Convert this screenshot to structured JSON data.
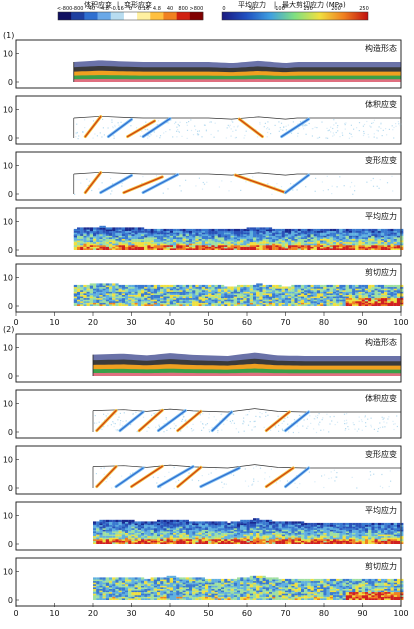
{
  "colorbars": {
    "left": {
      "title_a": "体积应变",
      "title_b": "变形应变",
      "ticks": [
        "<-800",
        "-800",
        "-40",
        "-4.8",
        "-0.16",
        "0",
        "0.16",
        "4.8",
        "40",
        "800",
        ">800"
      ],
      "colors": [
        "#101060",
        "#1e3fa0",
        "#2f6fd0",
        "#6aa8e8",
        "#b8dcf0",
        "#ffffff",
        "#fff0a0",
        "#ffc040",
        "#f08020",
        "#d02010",
        "#800000"
      ]
    },
    "right": {
      "title_a": "平均应力",
      "title_b": "最大剪切应力",
      "unit": "(MPa)",
      "ticks": [
        "0",
        "50",
        "100",
        "150",
        "200",
        "250"
      ],
      "colors": [
        "#1a1a80",
        "#2050c0",
        "#40a0e0",
        "#80e080",
        "#f0e040",
        "#f08020",
        "#c01010"
      ]
    }
  },
  "sections": [
    {
      "label": "(1)",
      "start_x": 15
    },
    {
      "label": "(2)",
      "start_x": 20
    }
  ],
  "panel_titles": [
    "构造形态",
    "体积应变",
    "变形应变",
    "平均应力",
    "剪切应力"
  ],
  "y_ticks": [
    "0",
    "10"
  ],
  "x_ticks": [
    "0",
    "10",
    "20",
    "30",
    "40",
    "50",
    "60",
    "70",
    "80",
    "90",
    "100"
  ],
  "layer_colors": [
    "#6a72a8",
    "#3a3a3a",
    "#f0a020",
    "#3aa048",
    "#e07080"
  ],
  "stress_colors": [
    "#1a2a90",
    "#2a52b8",
    "#3a7ad0",
    "#60b0e0",
    "#a0e0a0",
    "#f0e040",
    "#f08020",
    "#d02020"
  ],
  "section_1": {
    "topography": [
      [
        15,
        7.0
      ],
      [
        22,
        7.6
      ],
      [
        28,
        7.2
      ],
      [
        33,
        7.0
      ],
      [
        50,
        7.0
      ],
      [
        56,
        6.6
      ],
      [
        63,
        7.4
      ],
      [
        70,
        6.6
      ],
      [
        73,
        7.0
      ],
      [
        100,
        7.0
      ]
    ],
    "faults_volumetric": [
      [
        [
          18,
          0.5
        ],
        [
          22,
          7.5
        ]
      ],
      [
        [
          24,
          0.5
        ],
        [
          30,
          6.5
        ]
      ],
      [
        [
          29,
          0.5
        ],
        [
          36,
          6.0
        ]
      ],
      [
        [
          40,
          6.8
        ],
        [
          33,
          0.5
        ]
      ],
      [
        [
          58,
          6.6
        ],
        [
          64,
          0.5
        ]
      ],
      [
        [
          69,
          0.5
        ],
        [
          76,
          6.6
        ]
      ]
    ],
    "faults_deformation": [
      [
        [
          18,
          0.5
        ],
        [
          22,
          7.5
        ]
      ],
      [
        [
          22,
          0.5
        ],
        [
          30,
          6.5
        ]
      ],
      [
        [
          28,
          0.5
        ],
        [
          38,
          6.0
        ]
      ],
      [
        [
          42,
          6.8
        ],
        [
          33,
          0.5
        ]
      ],
      [
        [
          57,
          6.6
        ],
        [
          70,
          0.5
        ]
      ],
      [
        [
          70,
          0.5
        ],
        [
          76,
          6.6
        ]
      ]
    ]
  },
  "section_2": {
    "topography": [
      [
        20,
        7.5
      ],
      [
        28,
        7.8
      ],
      [
        34,
        7.2
      ],
      [
        40,
        8.0
      ],
      [
        46,
        7.4
      ],
      [
        55,
        7.0
      ],
      [
        62,
        8.2
      ],
      [
        68,
        7.2
      ],
      [
        75,
        7.0
      ],
      [
        100,
        7.0
      ]
    ],
    "faults_volumetric": [
      [
        [
          21,
          0.5
        ],
        [
          26,
          7.5
        ]
      ],
      [
        [
          27,
          0.5
        ],
        [
          33,
          7.0
        ]
      ],
      [
        [
          38,
          7.6
        ],
        [
          32,
          0.5
        ]
      ],
      [
        [
          37,
          0.5
        ],
        [
          44,
          7.5
        ]
      ],
      [
        [
          48,
          7.2
        ],
        [
          42,
          0.5
        ]
      ],
      [
        [
          56,
          7.0
        ],
        [
          51,
          0.5
        ]
      ],
      [
        [
          65,
          0.5
        ],
        [
          71,
          7.0
        ]
      ],
      [
        [
          76,
          7.0
        ],
        [
          70,
          0.5
        ]
      ]
    ],
    "faults_deformation": [
      [
        [
          21,
          0.5
        ],
        [
          26,
          7.5
        ]
      ],
      [
        [
          26,
          0.5
        ],
        [
          33,
          7.0
        ]
      ],
      [
        [
          38,
          7.6
        ],
        [
          30,
          0.5
        ]
      ],
      [
        [
          37,
          0.5
        ],
        [
          46,
          7.5
        ]
      ],
      [
        [
          48,
          7.2
        ],
        [
          42,
          0.5
        ]
      ],
      [
        [
          58,
          7.0
        ],
        [
          48,
          0.5
        ]
      ],
      [
        [
          65,
          0.5
        ],
        [
          72,
          7.0
        ]
      ],
      [
        [
          76,
          7.0
        ],
        [
          70,
          0.5
        ]
      ]
    ]
  }
}
